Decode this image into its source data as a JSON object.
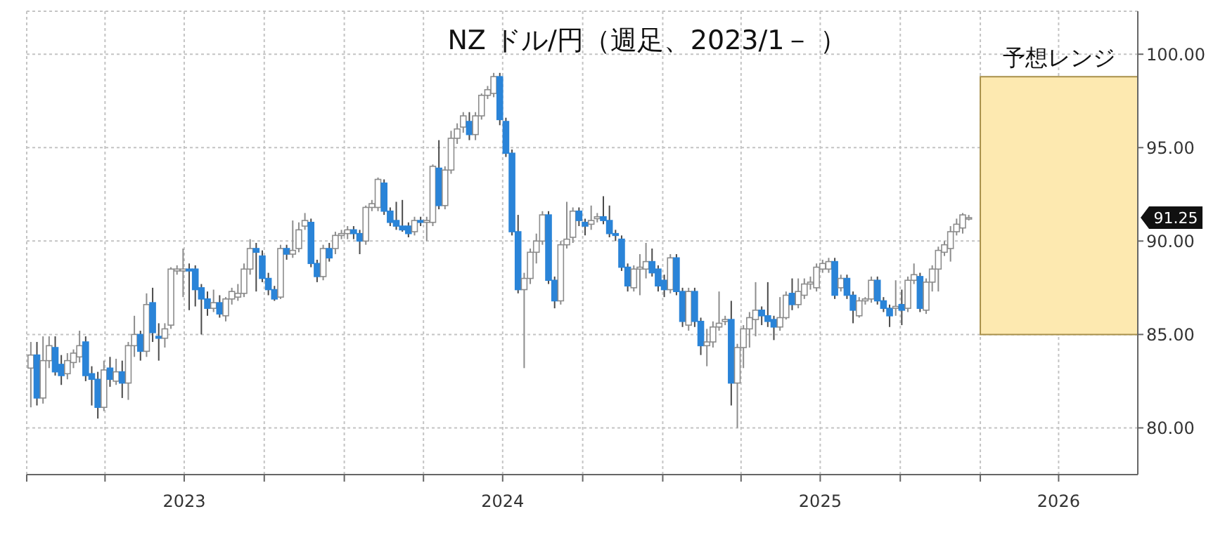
{
  "chart_data": {
    "type": "candlestick",
    "title": "NZ ドル/円（週足、2023/1－ ）",
    "colors": [
      "#ffffff",
      "#2a84d8",
      "#ffffff",
      "#ffffff",
      "#2a84d8",
      "#2a84d8",
      "#ffffff",
      "#ffffff",
      "#ffffff",
      "#2a84d8",
      "#2a84d8",
      "#2a84d8",
      "#ffffff",
      "#2a84d8",
      "#ffffff",
      "#2a84d8",
      "#ffffff",
      "#ffffff",
      "#2a84d8",
      "#ffffff",
      "#2a84d8",
      "#2a84d8",
      "#ffffff",
      "#ffffff",
      "#ffffff",
      "#ffffff",
      "#2a84d8",
      "#2a84d8",
      "#2a84d8",
      "#2a84d8",
      "#ffffff",
      "#2a84d8",
      "#ffffff",
      "#ffffff",
      "#ffffff",
      "#ffffff",
      "#ffffff",
      "#2a84d8",
      "#2a84d8",
      "#2a84d8",
      "#2a84d8",
      "#ffffff",
      "#2a84d8",
      "#ffffff",
      "#ffffff",
      "#ffffff",
      "#2a84d8",
      "#2a84d8",
      "#ffffff",
      "#2a84d8",
      "#ffffff",
      "#ffffff",
      "#ffffff",
      "#2a84d8",
      "#2a84d8",
      "#ffffff",
      "#ffffff",
      "#ffffff",
      "#2a84d8",
      "#2a84d8",
      "#2a84d8",
      "#2a84d8",
      "#2a84d8",
      "#ffffff",
      "#2a84d8",
      "#ffffff",
      "#ffffff",
      "#2a84d8",
      "#ffffff",
      "#ffffff",
      "#ffffff",
      "#ffffff",
      "#2a84d8",
      "#ffffff",
      "#ffffff",
      "#ffffff",
      "#ffffff",
      "#2a84d8",
      "#2a84d8",
      "#2a84d8",
      "#2a84d8",
      "#ffffff",
      "#ffffff",
      "#ffffff",
      "#ffffff",
      "#2a84d8",
      "#2a84d8",
      "#ffffff",
      "#ffffff",
      "#ffffff",
      "#2a84d8",
      "#2a84d8",
      "#ffffff",
      "#ffffff",
      "#2a84d8",
      "#2a84d8",
      "#2a84d8",
      "#2a84d8",
      "#2a84d8",
      "#ffffff",
      "#ffffff",
      "#ffffff",
      "#2a84d8",
      "#2a84d8",
      "#2a84d8",
      "#ffffff",
      "#2a84d8",
      "#2a84d8",
      "#ffffff",
      "#2a84d8",
      "#2a84d8",
      "#ffffff",
      "#ffffff",
      "#ffffff",
      "#ffffff",
      "#2a84d8",
      "#ffffff",
      "#ffffff",
      "#ffffff",
      "#ffffff",
      "#2a84d8",
      "#2a84d8",
      "#2a84d8",
      "#ffffff",
      "#ffffff",
      "#2a84d8",
      "#ffffff",
      "#ffffff",
      "#ffffff",
      "#ffffff",
      "#ffffff",
      "#ffffff",
      "#2a84d8",
      "#ffffff",
      "#2a84d8",
      "#2a84d8",
      "#ffffff",
      "#ffffff",
      "#ffffff",
      "#2a84d8",
      "#2a84d8",
      "#2a84d8",
      "#ffffff",
      "#2a84d8",
      "#ffffff",
      "#ffffff",
      "#2a84d8",
      "#ffffff",
      "#ffffff",
      "#ffffff",
      "#ffffff",
      "#ffffff",
      "#ffffff",
      "#ffffff",
      "#ffffff"
    ],
    "x": [
      "2023-01-06",
      "2023-01-13",
      "2023-01-20",
      "2023-01-27",
      "2023-02-03",
      "2023-02-10",
      "2023-02-17",
      "2023-02-24",
      "2023-03-03",
      "2023-03-10",
      "2023-03-17",
      "2023-03-24",
      "2023-03-31",
      "2023-04-07",
      "2023-04-14",
      "2023-04-21",
      "2023-04-28",
      "2023-05-05",
      "2023-05-12",
      "2023-05-19",
      "2023-05-26",
      "2023-06-02",
      "2023-06-09",
      "2023-06-16",
      "2023-06-23",
      "2023-06-30",
      "2023-07-07",
      "2023-07-14",
      "2023-07-21",
      "2023-07-28",
      "2023-08-04",
      "2023-08-11",
      "2023-08-18",
      "2023-08-25",
      "2023-09-01",
      "2023-09-08",
      "2023-09-15",
      "2023-09-22",
      "2023-09-29",
      "2023-10-06",
      "2023-10-13",
      "2023-10-20",
      "2023-10-27",
      "2023-11-03",
      "2023-11-10",
      "2023-11-17",
      "2023-11-24",
      "2023-12-01",
      "2023-12-08",
      "2023-12-15",
      "2023-12-22",
      "2023-12-29",
      "2024-01-05",
      "2024-01-12",
      "2024-01-19",
      "2024-01-26",
      "2024-02-02",
      "2024-02-09",
      "2024-02-16",
      "2024-02-23",
      "2024-03-01",
      "2024-03-08",
      "2024-03-15",
      "2024-03-22",
      "2024-03-29",
      "2024-04-05",
      "2024-04-12",
      "2024-04-19",
      "2024-04-26",
      "2024-05-03",
      "2024-05-10",
      "2024-05-17",
      "2024-05-24",
      "2024-05-31",
      "2024-06-07",
      "2024-06-14",
      "2024-06-21",
      "2024-06-28",
      "2024-07-05",
      "2024-07-12",
      "2024-07-19",
      "2024-07-26",
      "2024-08-02",
      "2024-08-09",
      "2024-08-16",
      "2024-08-23",
      "2024-08-30",
      "2024-09-06",
      "2024-09-13",
      "2024-09-20",
      "2024-09-27",
      "2024-10-04",
      "2024-10-11",
      "2024-10-18",
      "2024-10-25",
      "2024-11-01",
      "2024-11-08",
      "2024-11-15",
      "2024-11-22",
      "2024-11-29",
      "2024-12-06",
      "2024-12-13",
      "2024-12-20",
      "2024-12-27",
      "2025-01-03",
      "2025-01-10",
      "2025-01-17",
      "2025-01-24",
      "2025-01-31",
      "2025-02-07",
      "2025-02-14",
      "2025-02-21",
      "2025-02-28",
      "2025-03-07",
      "2025-03-14",
      "2025-03-21",
      "2025-03-28",
      "2025-04-04",
      "2025-04-11",
      "2025-04-18",
      "2025-04-25",
      "2025-05-02",
      "2025-05-09",
      "2025-05-16",
      "2025-05-23",
      "2025-05-30",
      "2025-06-06",
      "2025-06-13",
      "2025-06-20",
      "2025-06-27",
      "2025-07-04",
      "2025-07-11",
      "2025-07-18",
      "2025-07-25",
      "2025-08-01",
      "2025-08-08",
      "2025-08-15",
      "2025-08-22",
      "2025-08-29",
      "2025-09-05",
      "2025-09-12",
      "2025-09-19",
      "2025-09-26",
      "2025-10-03",
      "2025-10-10",
      "2025-10-17",
      "2025-10-24",
      "2025-10-31",
      "2025-11-07",
      "2025-11-14",
      "2025-11-21",
      "2025-11-28",
      "2025-12-05",
      "2025-12-12",
      "2025-12-19"
    ],
    "ohlc": [
      [
        83.2,
        84.6,
        81.1,
        83.9
      ],
      [
        83.9,
        84.6,
        81.2,
        81.6
      ],
      [
        81.6,
        84.9,
        81.3,
        83.6
      ],
      [
        83.6,
        84.9,
        83.2,
        84.4
      ],
      [
        84.3,
        84.9,
        82.8,
        83.0
      ],
      [
        83.4,
        83.9,
        82.3,
        82.8
      ],
      [
        82.9,
        84.0,
        82.6,
        83.6
      ],
      [
        83.5,
        84.2,
        83.2,
        84.0
      ],
      [
        83.8,
        85.2,
        83.5,
        84.4
      ],
      [
        84.6,
        84.9,
        82.5,
        82.8
      ],
      [
        82.9,
        83.3,
        81.2,
        82.6
      ],
      [
        82.6,
        83.0,
        80.5,
        81.1
      ],
      [
        81.1,
        83.6,
        80.9,
        83.1
      ],
      [
        83.2,
        83.8,
        82.2,
        82.6
      ],
      [
        82.5,
        83.7,
        82.3,
        83.0
      ],
      [
        83.0,
        83.6,
        81.6,
        82.4
      ],
      [
        82.4,
        84.6,
        81.5,
        84.4
      ],
      [
        84.4,
        86.0,
        83.8,
        85.0
      ],
      [
        85.0,
        85.2,
        83.6,
        84.1
      ],
      [
        84.1,
        87.2,
        83.8,
        86.6
      ],
      [
        86.7,
        87.5,
        84.6,
        85.1
      ],
      [
        84.9,
        85.6,
        83.6,
        84.8
      ],
      [
        84.8,
        85.6,
        84.3,
        85.3
      ],
      [
        85.5,
        88.6,
        85.3,
        88.5
      ],
      [
        88.4,
        88.7,
        88.2,
        88.5
      ],
      [
        88.4,
        89.6,
        87.0,
        88.5
      ],
      [
        88.5,
        88.8,
        86.3,
        88.4
      ],
      [
        88.5,
        88.7,
        86.5,
        87.4
      ],
      [
        87.5,
        87.7,
        85.0,
        86.9
      ],
      [
        86.9,
        87.3,
        86.0,
        86.4
      ],
      [
        86.4,
        87.4,
        86.2,
        86.7
      ],
      [
        86.7,
        87.1,
        85.9,
        86.1
      ],
      [
        86.0,
        87.0,
        85.7,
        86.9
      ],
      [
        86.9,
        87.5,
        86.6,
        87.3
      ],
      [
        87.0,
        87.7,
        86.8,
        87.2
      ],
      [
        87.2,
        88.8,
        87.0,
        88.5
      ],
      [
        88.5,
        90.1,
        88.2,
        89.6
      ],
      [
        89.6,
        89.9,
        87.3,
        89.4
      ],
      [
        89.2,
        89.5,
        87.8,
        88.0
      ],
      [
        88.0,
        88.3,
        87.1,
        87.4
      ],
      [
        87.4,
        87.6,
        86.8,
        86.9
      ],
      [
        87.0,
        89.8,
        86.9,
        89.6
      ],
      [
        89.6,
        89.8,
        89.0,
        89.3
      ],
      [
        89.3,
        91.1,
        89.1,
        89.5
      ],
      [
        89.6,
        91.0,
        89.4,
        90.6
      ],
      [
        90.8,
        91.5,
        90.6,
        91.1
      ],
      [
        91.0,
        91.2,
        88.6,
        88.8
      ],
      [
        88.8,
        89.0,
        87.8,
        88.1
      ],
      [
        88.1,
        89.8,
        87.9,
        89.6
      ],
      [
        89.6,
        89.9,
        88.9,
        89.1
      ],
      [
        89.6,
        90.5,
        89.3,
        90.3
      ],
      [
        90.3,
        90.6,
        90.1,
        90.4
      ],
      [
        90.4,
        90.8,
        90.1,
        90.6
      ],
      [
        90.6,
        90.8,
        90.1,
        90.4
      ],
      [
        90.4,
        90.6,
        89.3,
        90.0
      ],
      [
        90.0,
        91.9,
        89.8,
        91.8
      ],
      [
        91.8,
        92.2,
        91.6,
        92.0
      ],
      [
        91.8,
        93.4,
        91.6,
        93.3
      ],
      [
        93.1,
        93.3,
        91.4,
        91.6
      ],
      [
        91.6,
        91.8,
        90.8,
        91.0
      ],
      [
        91.1,
        92.1,
        90.6,
        90.8
      ],
      [
        90.8,
        92.2,
        90.5,
        90.6
      ],
      [
        90.8,
        91.0,
        90.2,
        90.4
      ],
      [
        90.5,
        91.3,
        90.3,
        91.1
      ],
      [
        91.1,
        91.3,
        90.8,
        91.0
      ],
      [
        91.0,
        91.3,
        90.0,
        91.1
      ],
      [
        91.0,
        94.1,
        90.8,
        94.0
      ],
      [
        93.9,
        95.4,
        91.7,
        91.9
      ],
      [
        91.9,
        94.0,
        91.7,
        93.8
      ],
      [
        93.8,
        95.9,
        93.6,
        95.5
      ],
      [
        95.5,
        96.3,
        95.2,
        96.0
      ],
      [
        96.1,
        96.9,
        95.8,
        96.7
      ],
      [
        96.4,
        96.9,
        95.4,
        95.7
      ],
      [
        95.7,
        96.9,
        95.4,
        96.7
      ],
      [
        96.7,
        97.9,
        96.5,
        97.8
      ],
      [
        97.8,
        98.3,
        97.6,
        98.1
      ],
      [
        97.9,
        99.0,
        97.7,
        98.8
      ],
      [
        98.8,
        99.0,
        96.2,
        96.5
      ],
      [
        96.4,
        96.6,
        94.5,
        94.7
      ],
      [
        94.7,
        94.9,
        90.3,
        90.5
      ],
      [
        90.5,
        91.4,
        87.2,
        87.4
      ],
      [
        87.4,
        88.3,
        83.2,
        88.0
      ],
      [
        88.0,
        89.6,
        87.7,
        89.4
      ],
      [
        89.4,
        90.4,
        88.8,
        90.0
      ],
      [
        90.0,
        91.6,
        89.8,
        91.4
      ],
      [
        91.4,
        91.6,
        87.7,
        87.9
      ],
      [
        87.9,
        88.1,
        86.4,
        86.8
      ],
      [
        86.8,
        90.0,
        86.6,
        89.8
      ],
      [
        89.8,
        92.1,
        89.6,
        90.1
      ],
      [
        90.2,
        91.8,
        89.9,
        91.6
      ],
      [
        91.6,
        91.8,
        90.8,
        91.1
      ],
      [
        91.0,
        91.2,
        90.3,
        90.8
      ],
      [
        90.9,
        91.9,
        90.6,
        91.1
      ],
      [
        91.2,
        91.5,
        91.0,
        91.3
      ],
      [
        91.3,
        92.4,
        90.9,
        91.1
      ],
      [
        91.1,
        91.9,
        90.2,
        90.4
      ],
      [
        90.4,
        90.6,
        90.0,
        90.3
      ],
      [
        90.1,
        90.3,
        88.4,
        88.6
      ],
      [
        88.6,
        88.8,
        87.3,
        87.6
      ],
      [
        87.5,
        88.7,
        87.3,
        88.5
      ],
      [
        88.5,
        89.3,
        87.1,
        88.6
      ],
      [
        88.5,
        89.9,
        88.0,
        88.9
      ],
      [
        88.9,
        89.6,
        88.1,
        88.3
      ],
      [
        88.5,
        88.7,
        87.3,
        87.6
      ],
      [
        87.9,
        88.2,
        87.0,
        87.4
      ],
      [
        87.4,
        89.3,
        87.2,
        89.1
      ],
      [
        89.1,
        89.3,
        87.1,
        87.3
      ],
      [
        87.3,
        87.5,
        85.4,
        85.7
      ],
      [
        85.5,
        87.5,
        85.2,
        87.3
      ],
      [
        87.3,
        87.5,
        85.4,
        85.7
      ],
      [
        85.7,
        85.9,
        83.9,
        84.4
      ],
      [
        84.4,
        85.3,
        83.3,
        84.6
      ],
      [
        84.6,
        85.7,
        84.3,
        85.4
      ],
      [
        85.4,
        87.3,
        85.2,
        85.6
      ],
      [
        85.7,
        86.0,
        85.5,
        85.8
      ],
      [
        85.8,
        86.8,
        81.2,
        82.4
      ],
      [
        82.4,
        84.5,
        80.0,
        84.3
      ],
      [
        84.3,
        85.5,
        83.2,
        85.3
      ],
      [
        85.3,
        86.2,
        84.3,
        85.9
      ],
      [
        85.8,
        87.8,
        84.9,
        86.3
      ],
      [
        86.3,
        86.5,
        85.5,
        86.0
      ],
      [
        86.0,
        87.8,
        85.4,
        85.7
      ],
      [
        85.8,
        86.0,
        84.7,
        85.4
      ],
      [
        85.4,
        87.0,
        85.2,
        85.9
      ],
      [
        85.9,
        87.3,
        85.8,
        87.1
      ],
      [
        87.2,
        88.0,
        86.3,
        86.6
      ],
      [
        86.6,
        88.0,
        86.4,
        87.3
      ],
      [
        87.1,
        88.0,
        86.9,
        87.7
      ],
      [
        87.7,
        88.1,
        87.4,
        87.8
      ],
      [
        87.5,
        88.8,
        87.3,
        88.6
      ],
      [
        88.5,
        89.0,
        88.3,
        88.8
      ],
      [
        88.5,
        89.1,
        88.3,
        88.9
      ],
      [
        88.9,
        89.1,
        86.9,
        87.1
      ],
      [
        87.5,
        88.2,
        87.3,
        88.0
      ],
      [
        88.0,
        88.2,
        86.9,
        87.1
      ],
      [
        87.1,
        87.3,
        85.6,
        86.3
      ],
      [
        86.0,
        87.0,
        85.9,
        86.8
      ],
      [
        86.8,
        87.0,
        86.6,
        86.9
      ],
      [
        86.9,
        88.1,
        86.7,
        87.9
      ],
      [
        87.9,
        88.1,
        86.6,
        86.8
      ],
      [
        86.8,
        87.0,
        86.2,
        86.4
      ],
      [
        86.4,
        86.6,
        85.4,
        86.0
      ],
      [
        86.4,
        87.9,
        86.0,
        86.5
      ],
      [
        86.6,
        87.4,
        85.5,
        86.3
      ],
      [
        86.4,
        88.1,
        86.2,
        87.9
      ],
      [
        87.9,
        88.8,
        87.7,
        88.2
      ],
      [
        88.1,
        88.3,
        86.2,
        86.4
      ],
      [
        86.3,
        88.0,
        86.1,
        87.8
      ],
      [
        87.8,
        88.7,
        87.3,
        88.5
      ],
      [
        88.5,
        89.7,
        87.3,
        89.5
      ],
      [
        89.4,
        90.0,
        89.2,
        89.8
      ],
      [
        89.6,
        90.8,
        88.9,
        90.5
      ],
      [
        90.5,
        91.2,
        90.3,
        90.9
      ],
      [
        90.7,
        91.5,
        90.4,
        91.4
      ],
      [
        91.2,
        91.4,
        91.1,
        91.25
      ]
    ],
    "xlim": [
      "2023-01-01",
      "2026-07-01"
    ],
    "xticks": [
      {
        "value": "2023-01-01",
        "label": null
      },
      {
        "value": "2023-04-01",
        "label": null
      },
      {
        "value": "2023-07-01",
        "label": "2023"
      },
      {
        "value": "2023-10-01",
        "label": null
      },
      {
        "value": "2024-01-01",
        "label": null
      },
      {
        "value": "2024-04-01",
        "label": null
      },
      {
        "value": "2024-07-01",
        "label": "2024"
      },
      {
        "value": "2024-10-01",
        "label": null
      },
      {
        "value": "2025-01-01",
        "label": null
      },
      {
        "value": "2025-04-01",
        "label": null
      },
      {
        "value": "2025-07-01",
        "label": "2025"
      },
      {
        "value": "2025-10-01",
        "label": null
      },
      {
        "value": "2026-01-01",
        "label": null
      },
      {
        "value": "2026-04-01",
        "label": "2026"
      }
    ],
    "ylim": [
      77.5,
      102.3
    ],
    "yticks": [
      {
        "value": 80,
        "label": "80.00"
      },
      {
        "value": 85,
        "label": "85.00"
      },
      {
        "value": 90,
        "label": "90.00"
      },
      {
        "value": 95,
        "label": "95.00"
      },
      {
        "value": 100,
        "label": "100.00"
      }
    ],
    "grid": true,
    "bands": [
      {
        "axis": "y",
        "from": 85,
        "to": 98.8,
        "label": "予想レンジ",
        "color": "#fde9b0"
      }
    ],
    "annotations": [
      {
        "text": "91.25",
        "x": "2026-07-01",
        "y": 91.25
      }
    ]
  }
}
